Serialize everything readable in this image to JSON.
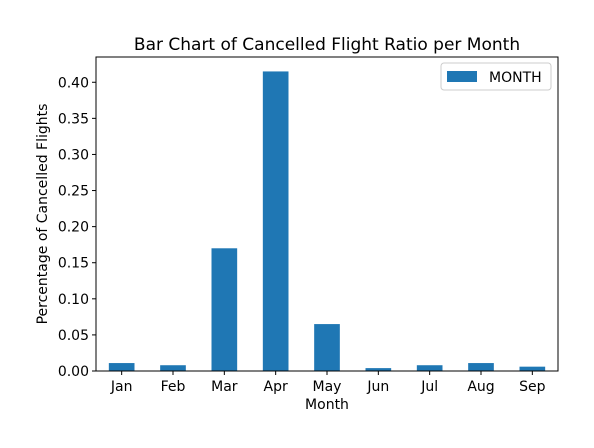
{
  "chart_data": {
    "type": "bar",
    "title": "Bar Chart of Cancelled Flight Ratio per Month",
    "xlabel": "Month",
    "ylabel": "Percentage of Cancelled Flights",
    "categories": [
      "Jan",
      "Feb",
      "Mar",
      "Apr",
      "May",
      "Jun",
      "Jul",
      "Aug",
      "Sep"
    ],
    "series": [
      {
        "name": "MONTH",
        "color": "#1f77b4",
        "values": [
          0.011,
          0.008,
          0.17,
          0.415,
          0.065,
          0.004,
          0.008,
          0.011,
          0.006
        ]
      }
    ],
    "ylim": [
      0,
      0.435
    ],
    "yticks": [
      "0.00",
      "0.05",
      "0.10",
      "0.15",
      "0.20",
      "0.25",
      "0.30",
      "0.35",
      "0.40"
    ],
    "grid": false,
    "legend_position": "top-right"
  }
}
